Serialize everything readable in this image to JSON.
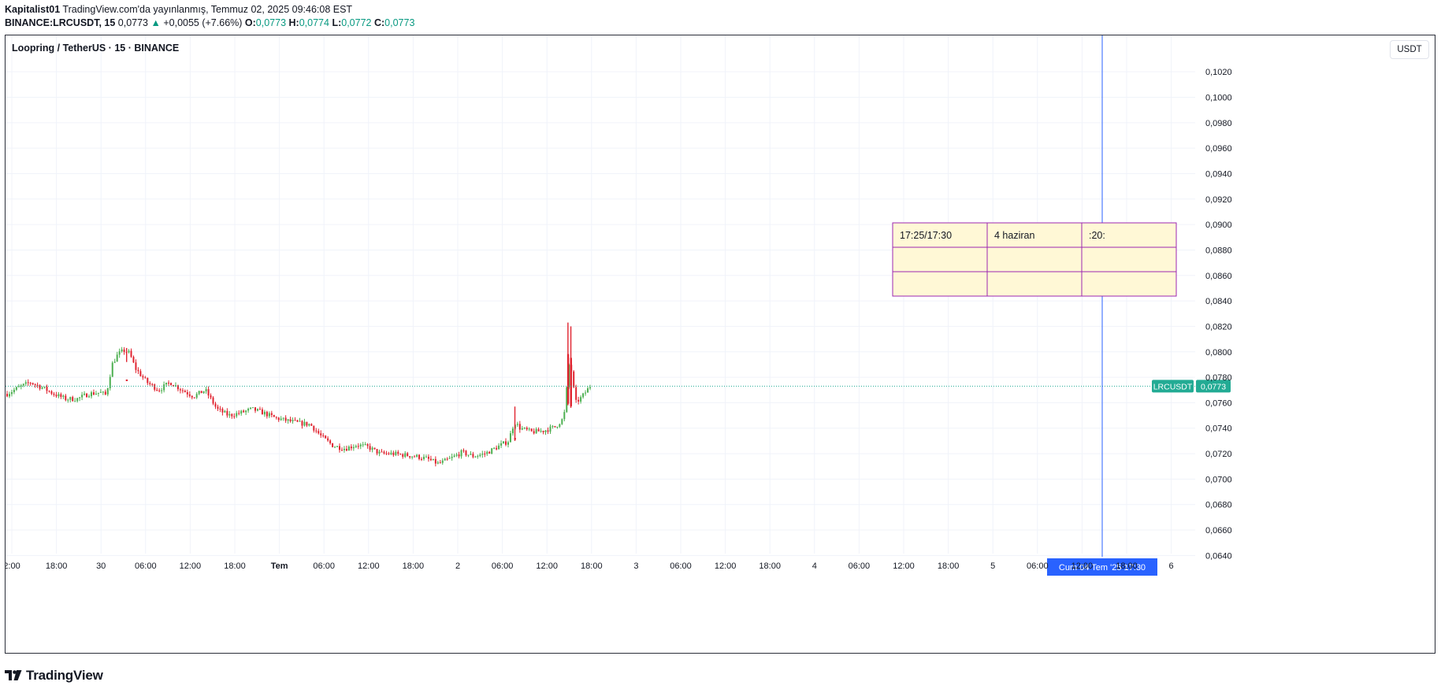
{
  "header": {
    "author": "Kapitalist01",
    "published": "TradingView.com'da yayınlanmış, Temmuz 02, 2025 09:46:08 EST",
    "symbol": "BINANCE:LRCUSDT, 15",
    "last": "0,0773",
    "change": "+0,0055 (+7.66%)",
    "o_label": "O:",
    "o": "0,0773",
    "h_label": "H:",
    "h": "0,0774",
    "l_label": "L:",
    "l": "0,0772",
    "c_label": "C:",
    "c": "0,0773"
  },
  "pane": {
    "title": "Loopring / TetherUS · 15 · BINANCE",
    "currency": "USDT"
  },
  "footer": {
    "brand": "TradingView"
  },
  "colors": {
    "up": "#089981",
    "down": "#f23645",
    "candle_up": "#4caf50",
    "candle_down": "#e0232f",
    "crosshair": "#2962ff",
    "table_border": "#9c27b0",
    "table_fill": "#fff8d6"
  },
  "chart_data": {
    "type": "candlestick",
    "title": "Loopring / TetherUS · 15 · BINANCE",
    "y_axis": {
      "ticks": [
        "0,0640",
        "0,0660",
        "0,0680",
        "0,0700",
        "0,0720",
        "0,0740",
        "0,0760",
        "0,0780",
        "0,0800",
        "0,0820",
        "0,0840",
        "0,0860",
        "0,0880",
        "0,0900",
        "0,0920",
        "0,0940",
        "0,0960",
        "0,0980",
        "0,1000",
        "0,1020"
      ],
      "range": [
        0.0639,
        0.103
      ]
    },
    "x_axis": {
      "ticks": [
        "2:00",
        "18:00",
        "30",
        "06:00",
        "12:00",
        "18:00",
        "Tem",
        "06:00",
        "12:00",
        "18:00",
        "2",
        "06:00",
        "12:00",
        "18:00",
        "3",
        "06:00",
        "12:00",
        "18:00",
        "4",
        "06:00",
        "12:00",
        "18:00",
        "5",
        "06:00",
        "12:00",
        "18:00",
        "6"
      ],
      "bold_ticks": [
        "Tem"
      ]
    },
    "grid": true,
    "last_price": {
      "label": "LRCUSDT",
      "value": "0,0773",
      "price": 0.0773
    },
    "crosshair": {
      "label": "Cum 04 Tem '25   17:30"
    },
    "price_path": [
      [
        0,
        0.0767
      ],
      [
        0.02,
        0.0772
      ],
      [
        0.04,
        0.0776
      ],
      [
        0.06,
        0.0772
      ],
      [
        0.08,
        0.0767
      ],
      [
        0.1,
        0.0763
      ],
      [
        0.12,
        0.0763
      ],
      [
        0.14,
        0.0767
      ],
      [
        0.16,
        0.0768
      ],
      [
        0.17,
        0.0766
      ],
      [
        0.18,
        0.079
      ],
      [
        0.19,
        0.0798
      ],
      [
        0.2,
        0.0801
      ],
      [
        0.21,
        0.0799
      ],
      [
        0.22,
        0.0787
      ],
      [
        0.24,
        0.0776
      ],
      [
        0.25,
        0.0773
      ],
      [
        0.26,
        0.077
      ],
      [
        0.28,
        0.0776
      ],
      [
        0.3,
        0.077
      ],
      [
        0.32,
        0.0765
      ],
      [
        0.34,
        0.077
      ],
      [
        0.36,
        0.0755
      ],
      [
        0.38,
        0.075
      ],
      [
        0.4,
        0.0752
      ],
      [
        0.42,
        0.0755
      ],
      [
        0.44,
        0.0752
      ],
      [
        0.46,
        0.0748
      ],
      [
        0.48,
        0.0746
      ],
      [
        0.5,
        0.0744
      ],
      [
        0.52,
        0.0743
      ],
      [
        0.54,
        0.0733
      ],
      [
        0.56,
        0.0726
      ],
      [
        0.58,
        0.0724
      ],
      [
        0.6,
        0.0727
      ],
      [
        0.62,
        0.0725
      ],
      [
        0.64,
        0.072
      ],
      [
        0.66,
        0.072
      ],
      [
        0.68,
        0.0719
      ],
      [
        0.7,
        0.0718
      ],
      [
        0.72,
        0.0716
      ],
      [
        0.74,
        0.0712
      ],
      [
        0.76,
        0.0716
      ],
      [
        0.78,
        0.0721
      ],
      [
        0.8,
        0.0718
      ],
      [
        0.82,
        0.072
      ],
      [
        0.84,
        0.0725
      ],
      [
        0.86,
        0.073
      ],
      [
        0.87,
        0.0745
      ],
      [
        0.88,
        0.074
      ],
      [
        0.9,
        0.0737
      ],
      [
        0.92,
        0.0738
      ],
      [
        0.94,
        0.0741
      ],
      [
        0.955,
        0.0748
      ],
      [
        0.965,
        0.0795
      ],
      [
        0.975,
        0.076
      ],
      [
        0.985,
        0.0764
      ],
      [
        1.0,
        0.0773
      ]
    ],
    "spikes": [
      {
        "t": 0.962,
        "high": 0.0823,
        "low": 0.0758
      },
      {
        "t": 0.967,
        "high": 0.082,
        "low": 0.0756
      },
      {
        "t": 0.871,
        "high": 0.0757,
        "low": 0.073
      },
      {
        "t": 0.205,
        "high": 0.0803,
        "low": 0.0792
      }
    ],
    "table": {
      "rows": [
        [
          "17:25/17:30",
          "4 haziran",
          ":20:"
        ],
        [
          "",
          "",
          ""
        ],
        [
          "",
          "",
          ""
        ]
      ]
    }
  }
}
